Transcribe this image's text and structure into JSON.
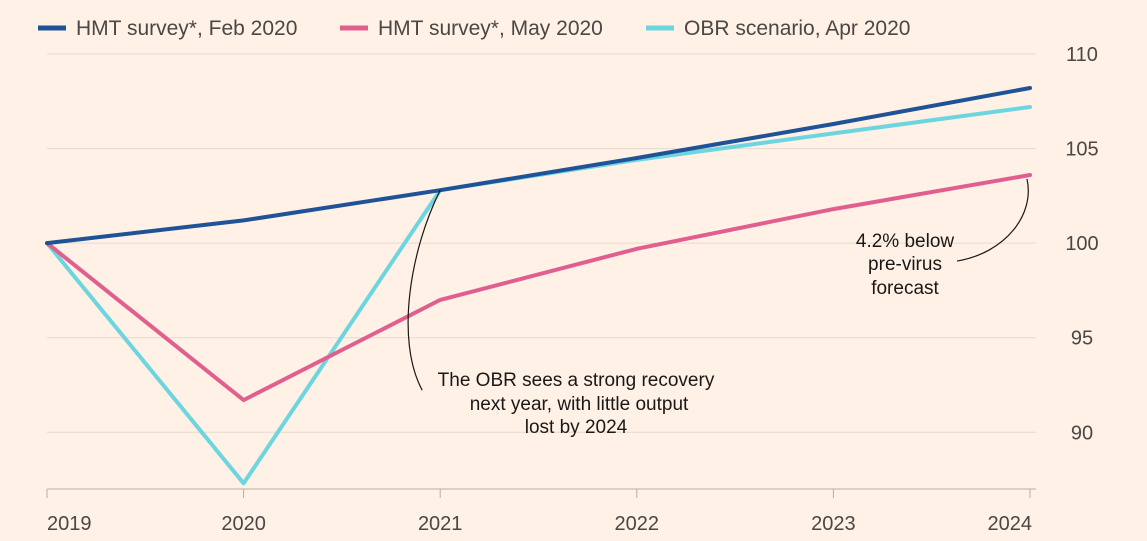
{
  "chart_data": {
    "type": "line",
    "title": "",
    "xlabel": "",
    "ylabel": "",
    "x": [
      "2019",
      "2020",
      "2021",
      "2022",
      "2023",
      "2024"
    ],
    "xlim": [
      2019,
      2024
    ],
    "ylim": [
      87,
      110
    ],
    "y_ticks": [
      90,
      95,
      100,
      105,
      110
    ],
    "grid": true,
    "y_axis_side": "right",
    "legend_position": "top",
    "series": [
      {
        "name": "HMT survey*, Feb 2020",
        "color": "#1F5296",
        "values": [
          100,
          101.2,
          102.8,
          104.5,
          106.3,
          108.2
        ]
      },
      {
        "name": "HMT survey*, May 2020",
        "color": "#E05F8E",
        "values": [
          100,
          91.7,
          97.0,
          99.7,
          101.8,
          103.6
        ]
      },
      {
        "name": "OBR scenario, Apr 2020",
        "color": "#6DD5DF",
        "values": [
          100,
          87.3,
          102.8,
          104.4,
          105.8,
          107.2
        ]
      }
    ],
    "annotations": [
      {
        "text_lines": [
          "The OBR sees a strong recovery",
          "next year, with little output",
          "lost by 2024"
        ],
        "points_to": {
          "x": 2021,
          "y": 102.8
        }
      },
      {
        "text_lines": [
          "4.2% below",
          "pre-virus",
          "forecast"
        ],
        "points_to": {
          "x": 2024,
          "y": 103.6
        }
      }
    ]
  }
}
